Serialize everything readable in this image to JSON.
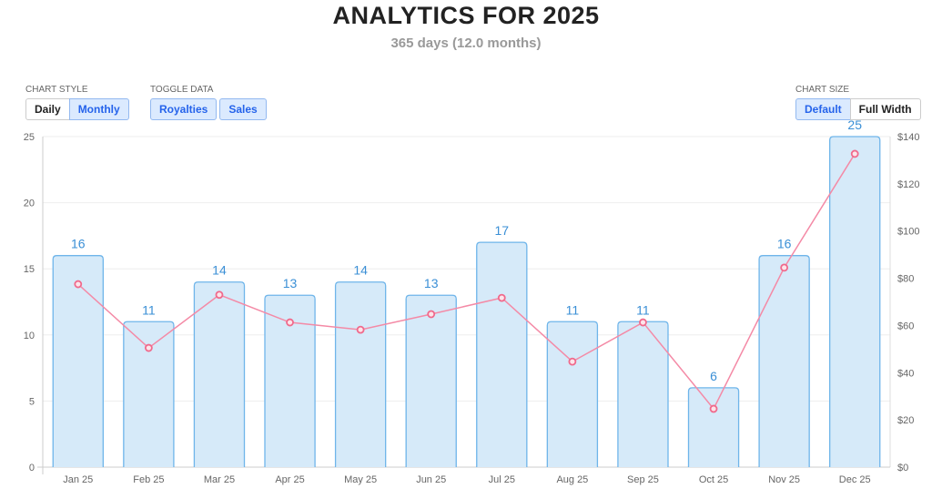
{
  "header": {
    "title": "ANALYTICS FOR 2025",
    "subtitle": "365 days (12.0 months)"
  },
  "controls": {
    "chart_style": {
      "label": "CHART STYLE",
      "options": [
        "Daily",
        "Monthly"
      ],
      "selected": "Monthly"
    },
    "toggle_data": {
      "label": "TOGGLE DATA",
      "options": [
        "Royalties",
        "Sales"
      ],
      "active": [
        "Royalties",
        "Sales"
      ]
    },
    "chart_size": {
      "label": "CHART SIZE",
      "options": [
        "Default",
        "Full Width"
      ],
      "selected": "Default"
    }
  },
  "chart_data": {
    "type": "bar",
    "categories": [
      "Jan 25",
      "Feb 25",
      "Mar 25",
      "Apr 25",
      "May 25",
      "Jun 25",
      "Jul 25",
      "Aug 25",
      "Sep 25",
      "Oct 25",
      "Nov 25",
      "Dec 25"
    ],
    "series": [
      {
        "type": "bar",
        "axis": "left",
        "values": [
          16,
          11,
          14,
          13,
          14,
          13,
          17,
          11,
          11,
          6,
          16,
          25
        ],
        "color": "#d6eaf9",
        "border": "#6fb5ea",
        "labels": true,
        "label_color": "#3a8fd6"
      },
      {
        "type": "line",
        "axis": "right",
        "values": [
          77.5,
          50.5,
          73,
          61.3,
          58.2,
          64.8,
          71.7,
          44.7,
          61.3,
          24.7,
          84.5,
          132.7
        ],
        "color": "#f48aa6"
      }
    ],
    "y_left": {
      "range": [
        0,
        25
      ],
      "ticks": [
        0,
        5,
        10,
        15,
        20,
        25
      ]
    },
    "y_right": {
      "range": [
        0,
        140
      ],
      "ticks": [
        0,
        20,
        40,
        60,
        80,
        100,
        120,
        140
      ],
      "prefix": "$"
    },
    "grid": true
  }
}
